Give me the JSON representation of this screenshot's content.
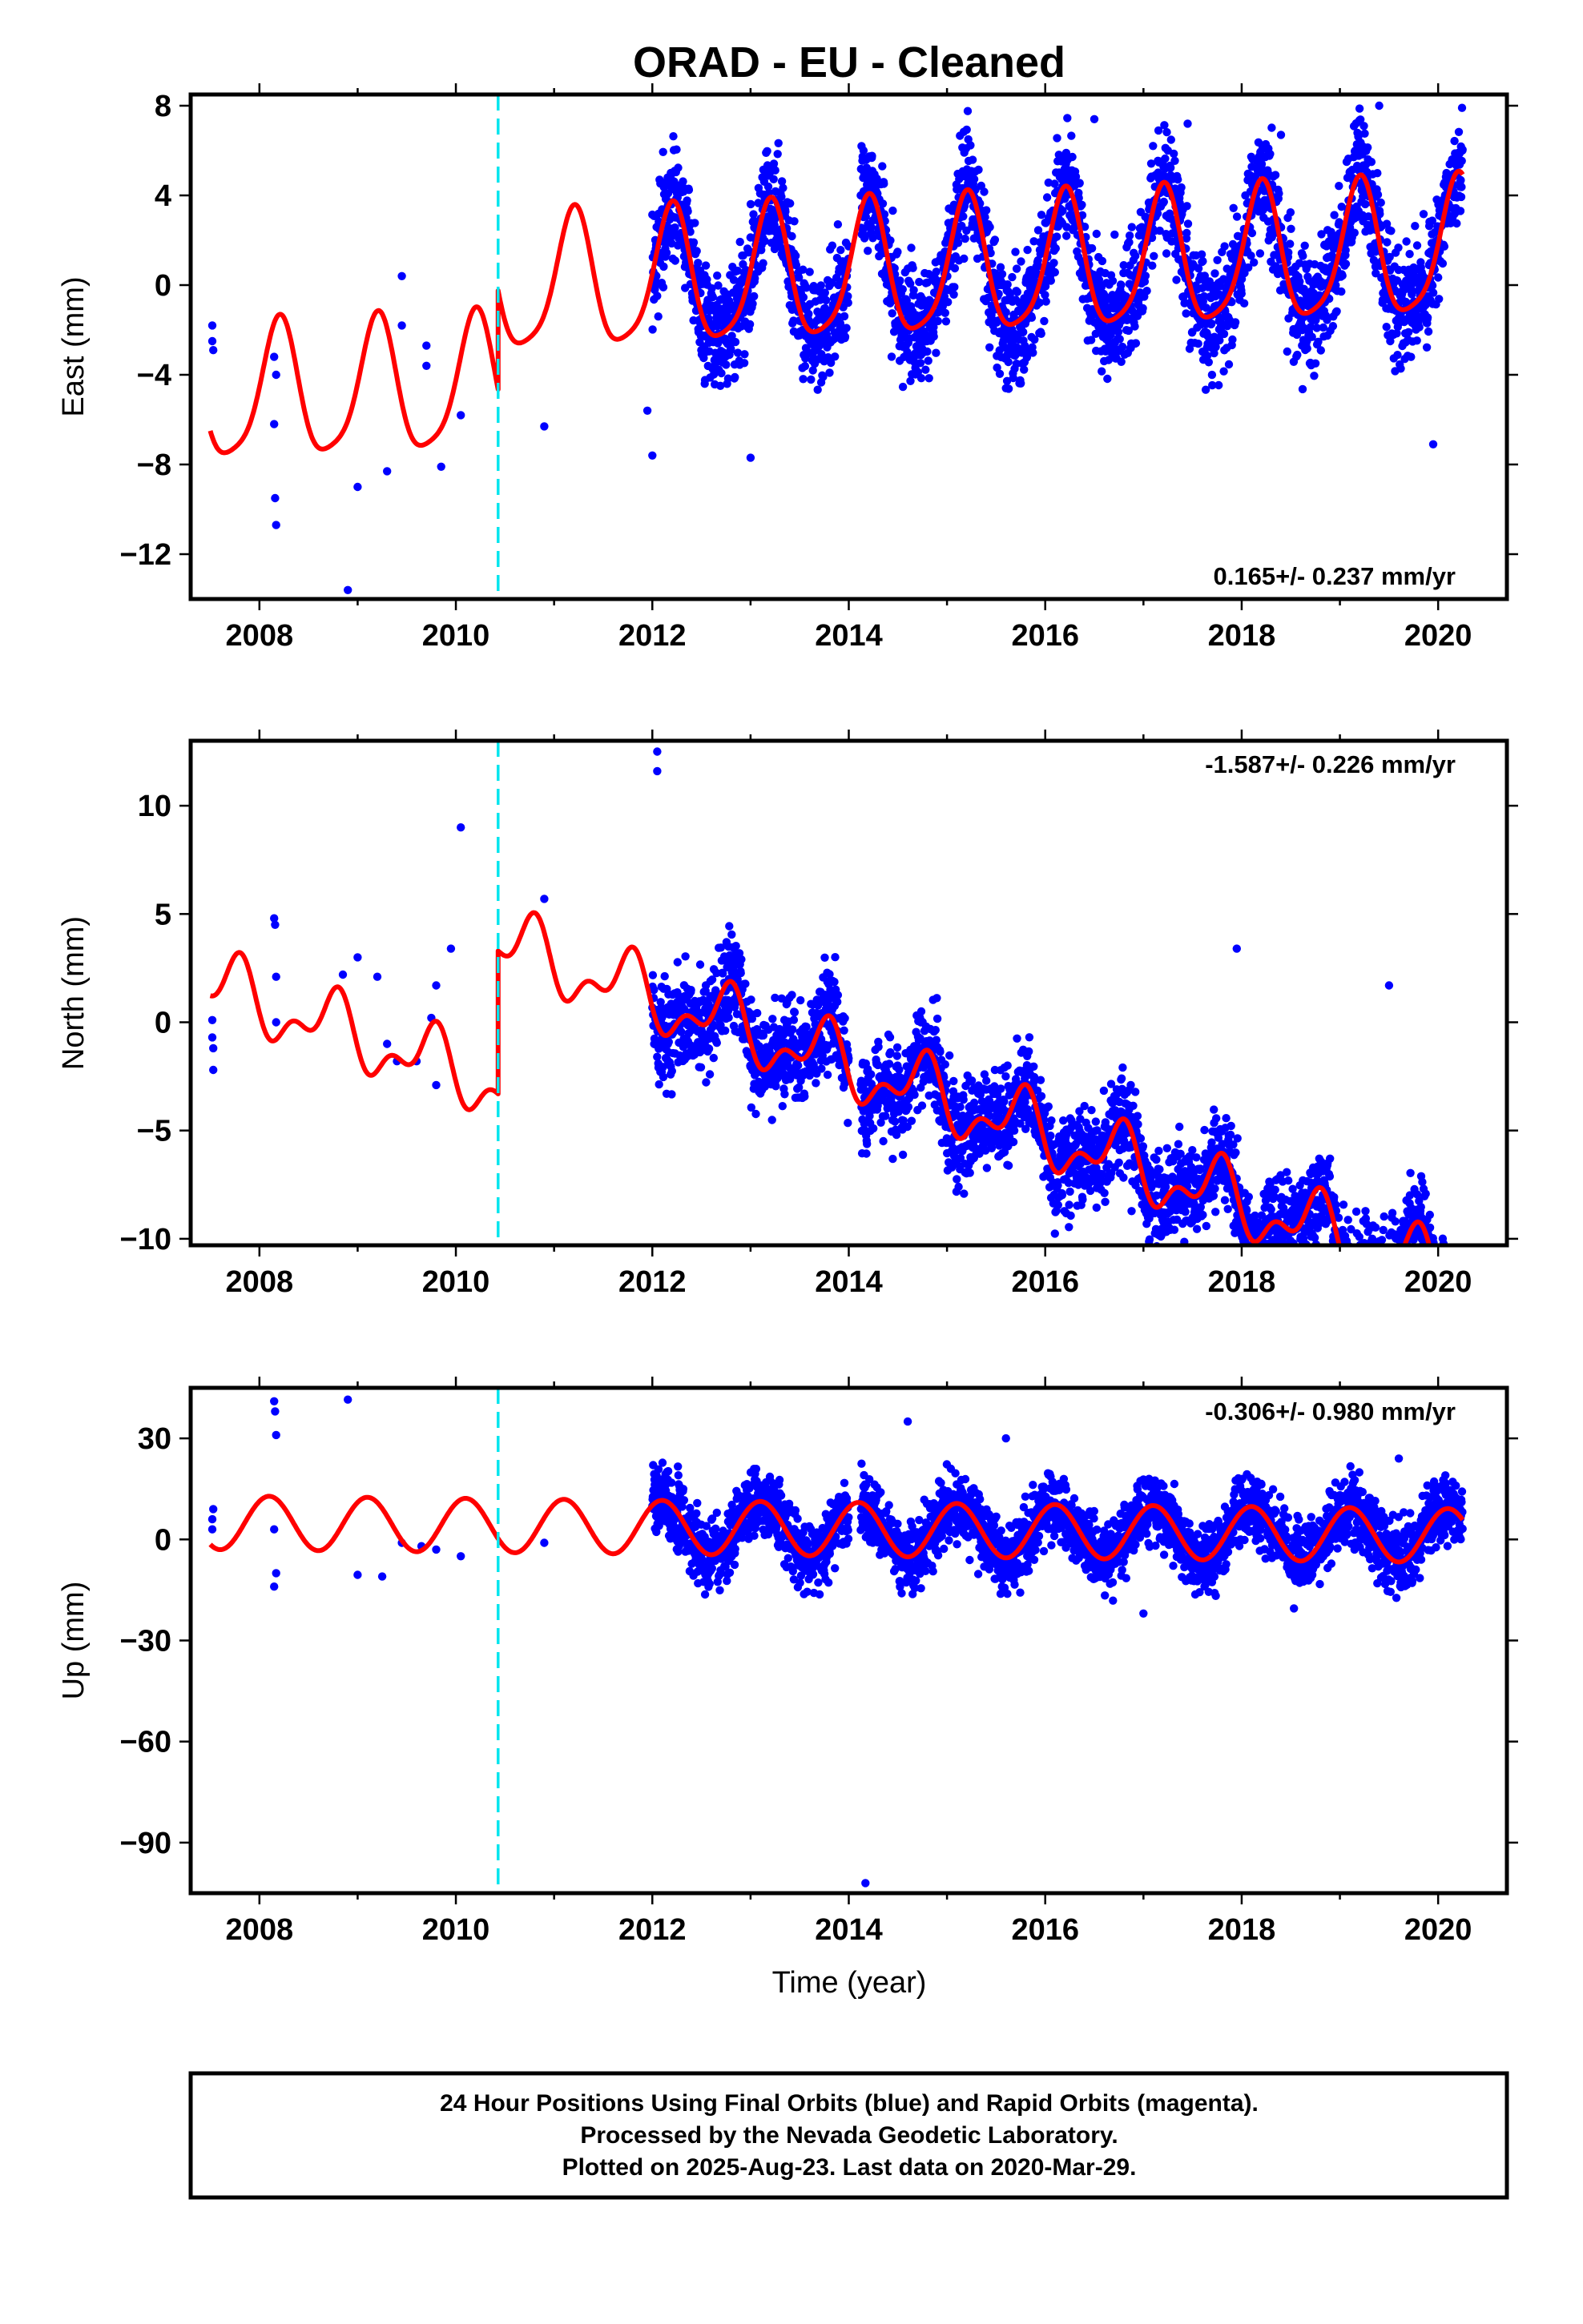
{
  "title": "ORAD  - EU - Cleaned",
  "colors": {
    "points": "#0000ff",
    "model": "#ff0000",
    "break_line": "#00e5ee",
    "frame": "#000000"
  },
  "xlabel": "Time (year)",
  "footer": {
    "line1": "24 Hour Positions Using Final Orbits (blue) and Rapid Orbits (magenta).",
    "line2": "Processed by the Nevada Geodetic Laboratory.",
    "line3": "Plotted on 2025-Aug-23. Last data on 2020-Mar-29."
  },
  "chart_data": [
    {
      "type": "scatter",
      "component": "east",
      "ylabel": "East (mm)",
      "rate_label": "0.165+/- 0.237 mm/yr",
      "xlim": [
        2007.3,
        2020.7
      ],
      "ylim": [
        -14,
        8.5
      ],
      "xticks": [
        2008,
        2010,
        2012,
        2014,
        2016,
        2018,
        2020
      ],
      "yticks": [
        8,
        4,
        0,
        -4,
        -8,
        -12
      ],
      "ytick_labels": [
        "8",
        "4",
        "0",
        "−4",
        "−8",
        "−12"
      ],
      "break_year": 2010.43,
      "grid": false,
      "model": {
        "segments": [
          {
            "x_range": [
              2007.5,
              2010.43
            ],
            "offset": -5.0,
            "trend": 0.165,
            "annual_amp": 3.0,
            "annual_phase": 0.45,
            "semi_amp": 0.6,
            "semi_phase": 0.1
          },
          {
            "x_range": [
              2010.43,
              2020.25
            ],
            "offset": -0.6,
            "trend": 0.165,
            "annual_amp": 3.0,
            "annual_phase": 0.45,
            "semi_amp": 0.6,
            "semi_phase": 0.1
          }
        ]
      },
      "dense_from": 2012.0,
      "noise_sd": 1.3,
      "sparse_points": [
        [
          2007.52,
          -1.8
        ],
        [
          2007.52,
          -2.5
        ],
        [
          2007.53,
          -2.9
        ],
        [
          2008.15,
          -3.2
        ],
        [
          2008.17,
          -4.0
        ],
        [
          2008.15,
          -6.2
        ],
        [
          2008.16,
          -9.5
        ],
        [
          2008.17,
          -10.7
        ],
        [
          2008.9,
          -13.6
        ],
        [
          2009.0,
          -9.0
        ],
        [
          2009.3,
          -8.3
        ],
        [
          2009.45,
          0.4
        ],
        [
          2009.45,
          -1.8
        ],
        [
          2009.7,
          -2.7
        ],
        [
          2009.7,
          -3.6
        ],
        [
          2009.85,
          -8.1
        ],
        [
          2010.05,
          -5.8
        ],
        [
          2010.9,
          -6.3
        ],
        [
          2011.95,
          -5.6
        ]
      ],
      "outliers": [
        [
          2012.0,
          -7.6
        ],
        [
          2013.0,
          -7.7
        ],
        [
          2014.15,
          6.0
        ],
        [
          2015.6,
          -4.6
        ],
        [
          2016.5,
          7.4
        ],
        [
          2017.45,
          7.2
        ],
        [
          2018.4,
          6.7
        ],
        [
          2019.4,
          8.0
        ],
        [
          2019.95,
          -7.1
        ]
      ]
    },
    {
      "type": "scatter",
      "component": "north",
      "ylabel": "North (mm)",
      "rate_label": "-1.587+/- 0.226 mm/yr",
      "xlim": [
        2007.3,
        2020.7
      ],
      "ylim": [
        -10.3,
        13
      ],
      "xticks": [
        2008,
        2010,
        2012,
        2014,
        2016,
        2018,
        2020
      ],
      "yticks": [
        10,
        5,
        0,
        -5,
        -10
      ],
      "ytick_labels": [
        "10",
        "5",
        "0",
        "−5",
        "−10"
      ],
      "break_year": 2010.43,
      "grid": false,
      "model": {
        "segments": [
          {
            "x_range": [
              2007.5,
              2010.43
            ],
            "offset": 1.7,
            "trend": -1.587,
            "annual_amp": 1.3,
            "annual_phase": 0.0,
            "semi_amp": 0.8,
            "semi_phase": 0.2
          },
          {
            "x_range": [
              2010.43,
              2020.25
            ],
            "offset": 8.3,
            "trend": -1.587,
            "annual_amp": 1.3,
            "annual_phase": 0.0,
            "semi_amp": 0.8,
            "semi_phase": 0.2
          }
        ]
      },
      "dense_from": 2012.0,
      "noise_sd": 1.1,
      "sparse_points": [
        [
          2007.52,
          0.1
        ],
        [
          2007.52,
          -0.7
        ],
        [
          2007.53,
          -1.2
        ],
        [
          2007.53,
          -2.2
        ],
        [
          2008.15,
          4.8
        ],
        [
          2008.16,
          4.5
        ],
        [
          2008.17,
          0.0
        ],
        [
          2008.17,
          2.1
        ],
        [
          2008.85,
          2.2
        ],
        [
          2009.0,
          3.0
        ],
        [
          2009.2,
          2.1
        ],
        [
          2009.3,
          -1.0
        ],
        [
          2009.4,
          -1.8
        ],
        [
          2009.6,
          -1.8
        ],
        [
          2009.75,
          0.2
        ],
        [
          2009.8,
          1.7
        ],
        [
          2009.8,
          -2.9
        ],
        [
          2009.95,
          3.4
        ],
        [
          2010.05,
          9.0
        ],
        [
          2010.9,
          5.7
        ],
        [
          2013.7,
          -1.1
        ],
        [
          2014.6,
          -2.5
        ]
      ],
      "outliers": [
        [
          2012.05,
          12.5
        ],
        [
          2012.05,
          11.6
        ],
        [
          2017.95,
          3.4
        ],
        [
          2018.6,
          -8.9
        ],
        [
          2019.5,
          1.7
        ],
        [
          2019.85,
          -9.8
        ]
      ]
    },
    {
      "type": "scatter",
      "component": "up",
      "ylabel": "Up (mm)",
      "rate_label": "-0.306+/- 0.980 mm/yr",
      "xlim": [
        2007.3,
        2020.7
      ],
      "ylim": [
        -105,
        45
      ],
      "xticks": [
        2008,
        2010,
        2012,
        2014,
        2016,
        2018,
        2020
      ],
      "yticks": [
        30,
        0,
        -30,
        -60,
        -90
      ],
      "ytick_labels": [
        "30",
        "0",
        "−30",
        "−60",
        "−90"
      ],
      "break_year": 2010.43,
      "grid": false,
      "model": {
        "segments": [
          {
            "x_range": [
              2007.5,
              2020.25
            ],
            "offset": 5.0,
            "trend": -0.306,
            "annual_amp": 8.0,
            "annual_phase": 0.35,
            "semi_amp": 0.0,
            "semi_phase": 0.0
          }
        ]
      },
      "dense_from": 2012.0,
      "noise_sd": 5.0,
      "sparse_points": [
        [
          2007.52,
          3.0
        ],
        [
          2007.52,
          6.0
        ],
        [
          2007.53,
          9.0
        ],
        [
          2008.15,
          41.0
        ],
        [
          2008.16,
          38.0
        ],
        [
          2008.17,
          31.0
        ],
        [
          2008.15,
          3.0
        ],
        [
          2008.15,
          -14.0
        ],
        [
          2008.17,
          -10.0
        ],
        [
          2008.9,
          41.5
        ],
        [
          2009.0,
          -10.5
        ],
        [
          2009.25,
          -11.0
        ],
        [
          2009.45,
          -1.0
        ],
        [
          2009.65,
          -2.0
        ],
        [
          2009.8,
          -3.0
        ],
        [
          2010.05,
          -5.0
        ],
        [
          2010.9,
          -1.0
        ],
        [
          2014.17,
          -102.0
        ]
      ],
      "outliers": [
        [
          2014.6,
          35.0
        ],
        [
          2015.6,
          30.0
        ],
        [
          2017.0,
          -22.0
        ],
        [
          2019.6,
          24.0
        ]
      ]
    }
  ]
}
